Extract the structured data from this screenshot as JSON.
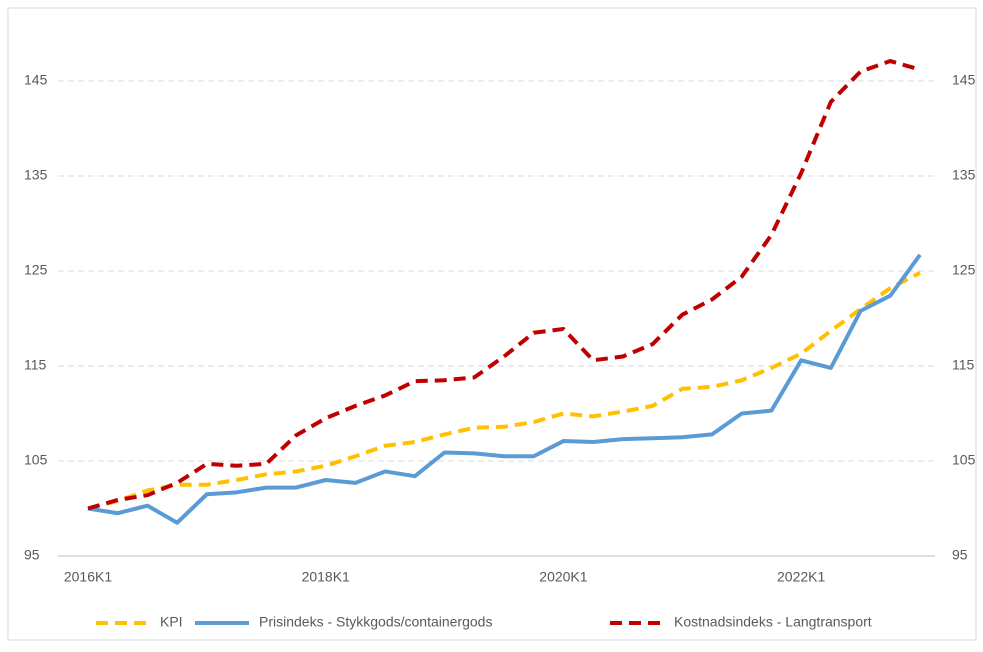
{
  "chart_data": {
    "type": "line",
    "categories": [
      "2016K1",
      null,
      null,
      null,
      null,
      null,
      null,
      null,
      "2018K1",
      null,
      null,
      null,
      null,
      null,
      null,
      null,
      "2020K1",
      null,
      null,
      null,
      null,
      null,
      null,
      null,
      "2022K1",
      null,
      null,
      null,
      null
    ],
    "series": [
      {
        "name": "KPI",
        "color": "#FFC000",
        "dash": true,
        "values": [
          100,
          100.8,
          101.9,
          102.5,
          102.5,
          103,
          103.6,
          103.9,
          104.5,
          105.5,
          106.6,
          107,
          107.8,
          108.5,
          108.6,
          109.1,
          110,
          109.7,
          110.2,
          110.8,
          112.6,
          112.8,
          113.5,
          114.8,
          116.3,
          118.7,
          121,
          123.2,
          124.8
        ]
      },
      {
        "name": "Prisindeks - Stykkgods/containergods",
        "color": "#5B9BD5",
        "dash": false,
        "values": [
          100,
          99.5,
          100.3,
          98.5,
          101.5,
          101.7,
          102.2,
          102.2,
          103,
          102.7,
          103.9,
          103.4,
          105.9,
          105.8,
          105.5,
          105.5,
          107.1,
          107,
          107.3,
          107.4,
          107.5,
          107.8,
          110,
          110.3,
          115.6,
          114.8,
          120.8,
          122.4,
          126.7
        ]
      },
      {
        "name": "Kostnadsindeks - Langtransport",
        "color": "#C00000",
        "dash": true,
        "values": [
          100,
          100.9,
          101.4,
          102.7,
          104.7,
          104.5,
          104.7,
          107.7,
          109.5,
          110.8,
          111.9,
          113.4,
          113.5,
          113.8,
          116,
          118.5,
          118.9,
          115.6,
          116,
          117.3,
          120.4,
          122,
          124.4,
          128.8,
          135.3,
          142.8,
          146,
          147.1,
          146.2
        ]
      }
    ],
    "ylim": [
      95,
      150
    ],
    "yticks": [
      95,
      105,
      115,
      125,
      135,
      145
    ],
    "y2lim": [
      95,
      150
    ],
    "y2ticks": [
      95,
      105,
      115,
      125,
      135,
      145
    ],
    "grid": true,
    "legend": "bottom"
  }
}
